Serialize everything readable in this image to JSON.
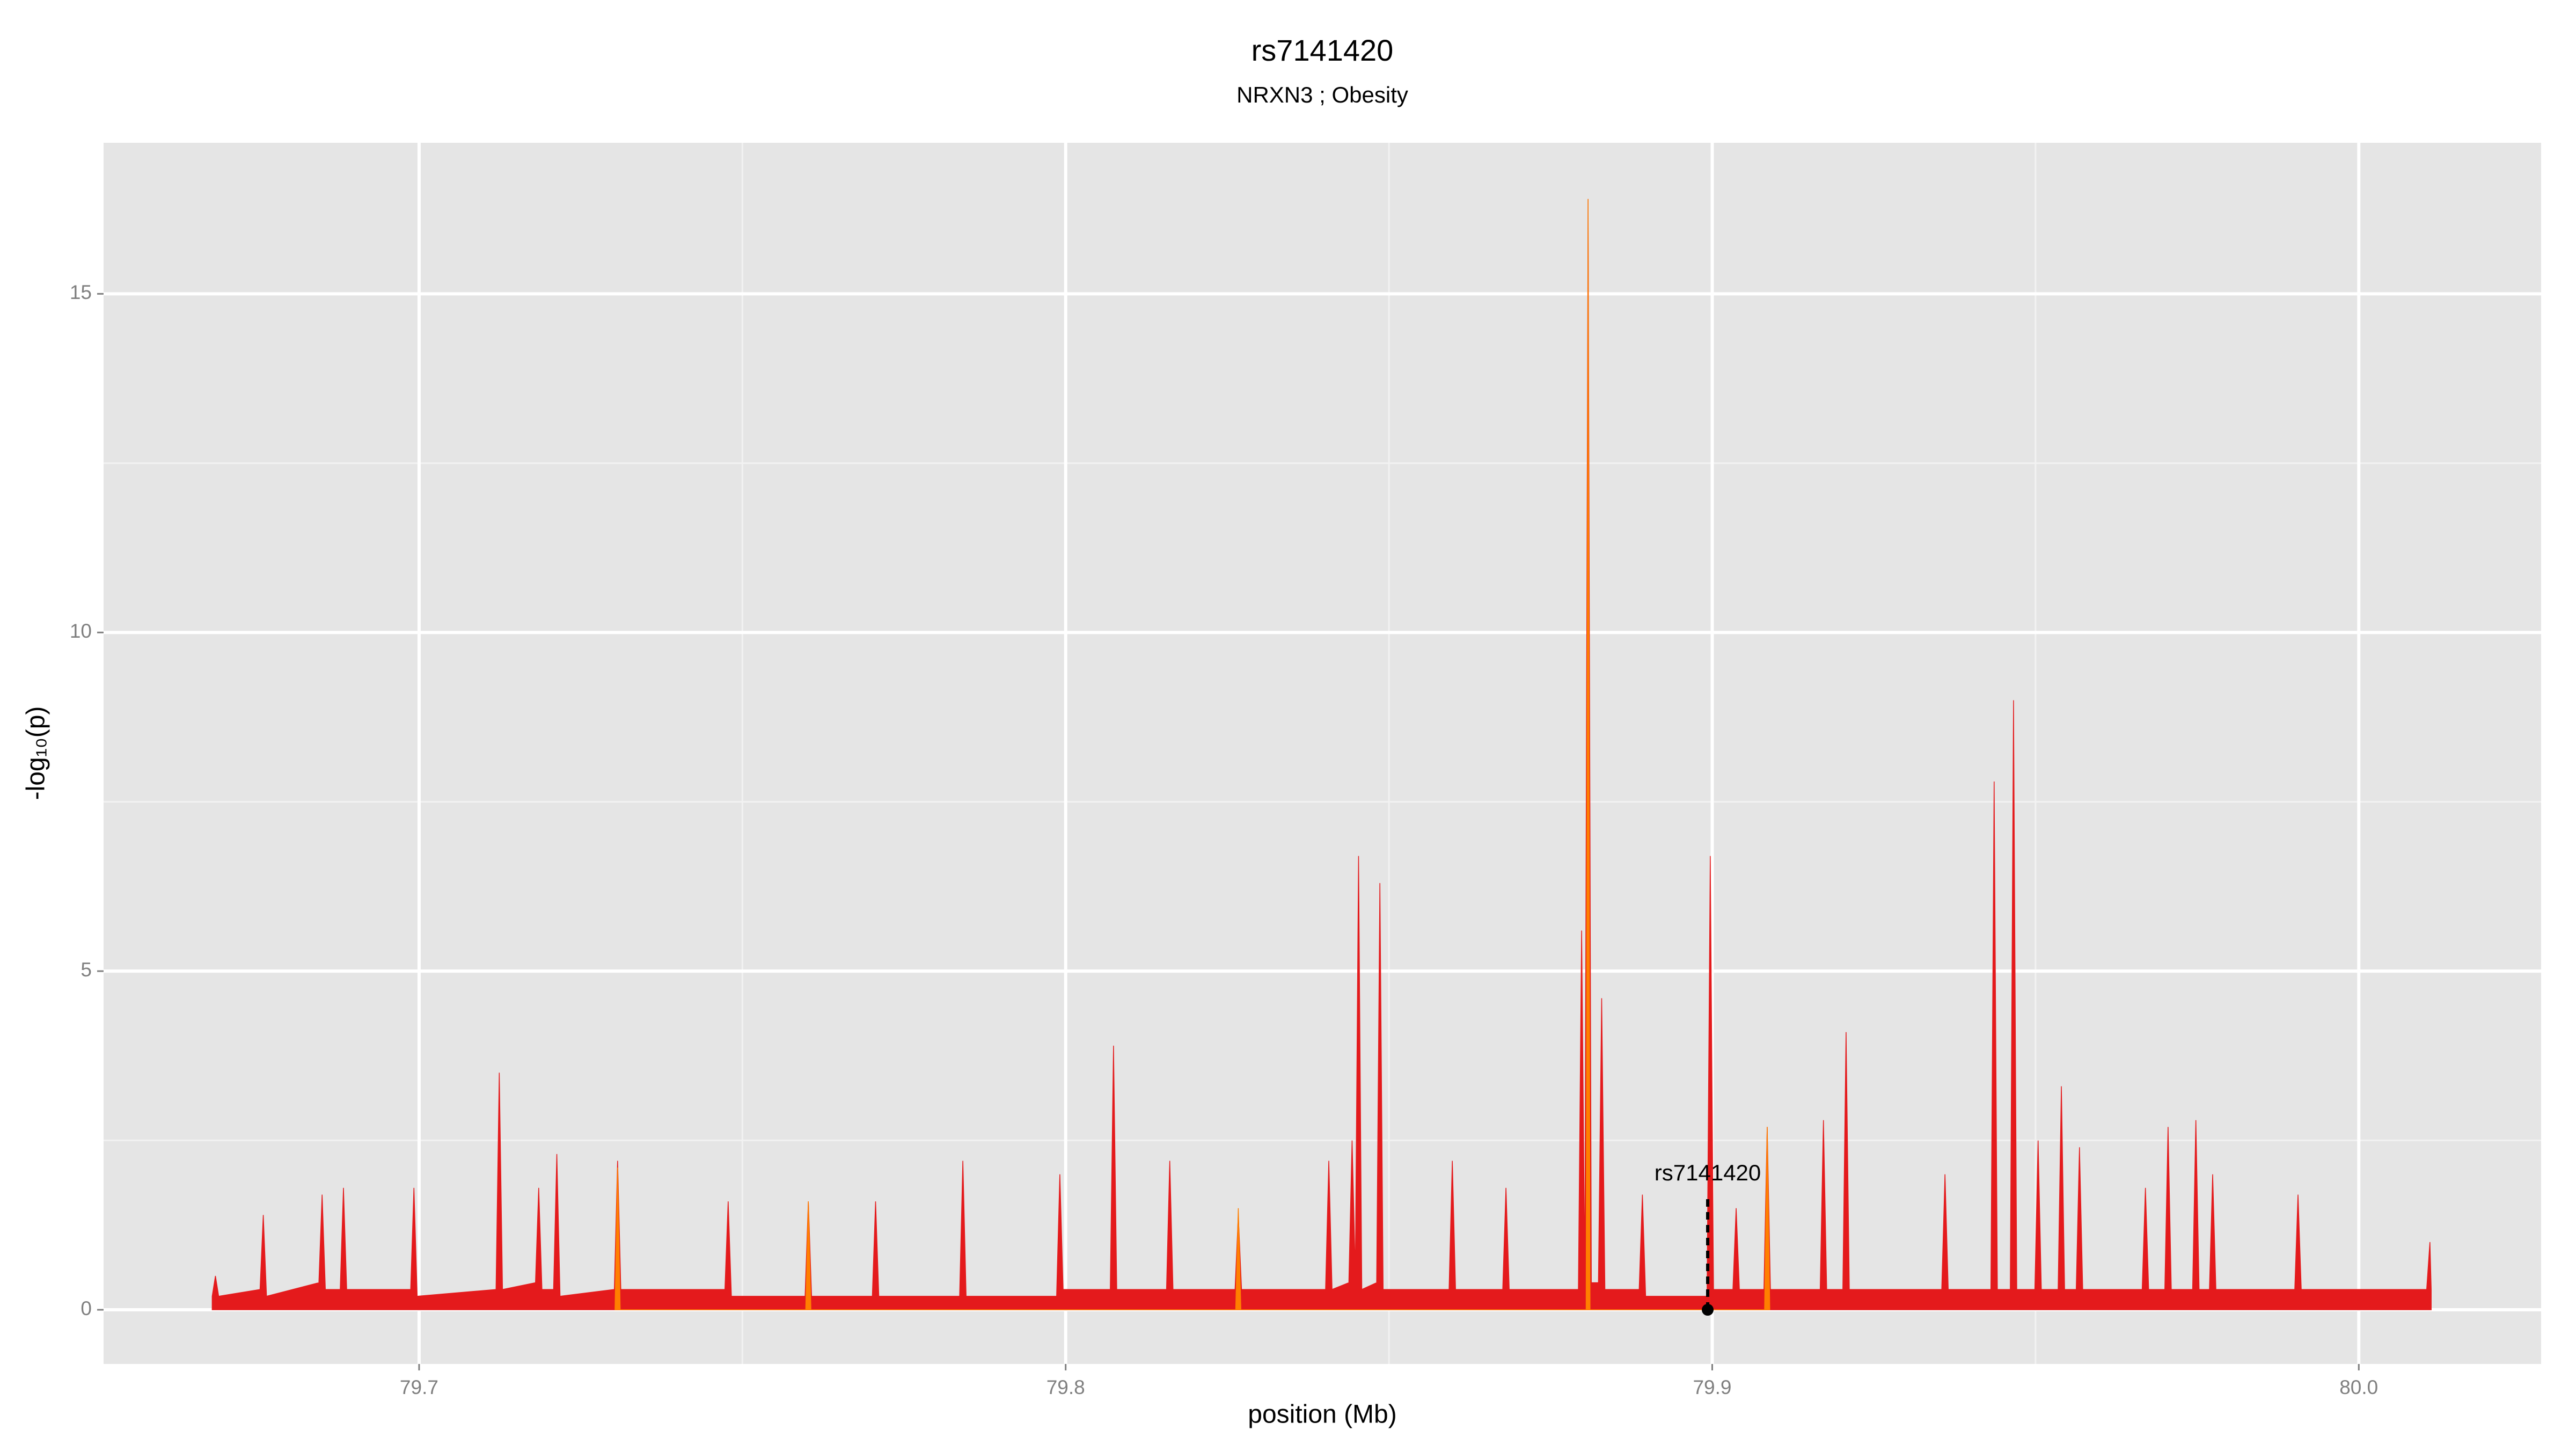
{
  "chart_data": {
    "type": "area",
    "title": "rs7141420",
    "subtitle": "NRXN3 ; Obesity",
    "xlabel": "position (Mb)",
    "ylabel": "-log₁₀(p)",
    "xlim": [
      79.6512,
      80.0282
    ],
    "ylim": [
      -0.8,
      17.23
    ],
    "xticks": [
      79.7,
      79.8,
      79.9,
      {
        "value": 80.0,
        "label": "80.0"
      }
    ],
    "yticks": [
      0,
      5,
      10,
      15
    ],
    "xminor": [
      79.75,
      79.85,
      79.95
    ],
    "yminor": [
      2.5,
      7.5,
      12.5
    ],
    "grid": true,
    "series": [
      {
        "color": "#e41a1c",
        "x": [
          79.668,
          79.6685,
          79.669,
          79.6754,
          79.6759,
          79.6764,
          79.6845,
          79.685,
          79.6855,
          79.6878,
          79.6883,
          79.6888,
          79.6987,
          79.6992,
          79.6997,
          79.7119,
          79.7124,
          79.7129,
          79.718,
          79.7185,
          79.719,
          79.7208,
          79.7213,
          79.7218,
          79.7302,
          79.7307,
          79.7312,
          79.7473,
          79.7478,
          79.7483,
          79.7597,
          79.7602,
          79.7607,
          79.7701,
          79.7706,
          79.7711,
          79.7836,
          79.7841,
          79.7846,
          79.7986,
          79.7991,
          79.7996,
          79.8069,
          79.8074,
          79.8079,
          79.8156,
          79.8161,
          79.8166,
          79.8262,
          79.8267,
          79.8272,
          79.8402,
          79.8407,
          79.8412,
          79.8438,
          79.8443,
          79.8448,
          79.8453,
          79.8458,
          79.8481,
          79.8486,
          79.8491,
          79.8593,
          79.8598,
          79.8603,
          79.8676,
          79.8681,
          79.8686,
          79.8793,
          79.8798,
          79.8803,
          79.8808,
          79.8813,
          79.8824,
          79.8829,
          79.8834,
          79.8887,
          79.8892,
          79.8897,
          79.8992,
          79.8997,
          79.9002,
          79.9032,
          79.9037,
          79.9042,
          79.908,
          79.9085,
          79.909,
          79.9167,
          79.9172,
          79.9177,
          79.9202,
          79.9207,
          79.9212,
          79.9355,
          79.936,
          79.9365,
          79.9431,
          79.9436,
          79.9441,
          79.9461,
          79.9466,
          79.9471,
          79.9499,
          79.9504,
          79.9509,
          79.9535,
          79.954,
          79.9545,
          79.9563,
          79.9568,
          79.9573,
          79.9665,
          79.967,
          79.9675,
          79.97,
          79.9705,
          79.971,
          79.9743,
          79.9748,
          79.9753,
          79.9769,
          79.9774,
          79.9779,
          79.9901,
          79.9906,
          79.9911,
          80.0105,
          80.011,
          80.0112
        ],
        "values": [
          0.2,
          0.5,
          0.2,
          0.3,
          1.4,
          0.2,
          0.4,
          1.7,
          0.3,
          0.3,
          1.8,
          0.3,
          0.3,
          1.8,
          0.2,
          0.3,
          3.5,
          0.3,
          0.4,
          1.8,
          0.3,
          0.3,
          2.3,
          0.2,
          0.3,
          2.2,
          0.3,
          0.3,
          1.6,
          0.2,
          0.2,
          1.6,
          0.2,
          0.2,
          1.6,
          0.2,
          0.2,
          2.2,
          0.2,
          0.2,
          2.0,
          0.3,
          0.3,
          3.9,
          0.3,
          0.3,
          2.2,
          0.3,
          0.3,
          1.4,
          0.3,
          0.3,
          2.2,
          0.3,
          0.4,
          2.5,
          0.5,
          6.7,
          0.3,
          0.4,
          6.3,
          0.3,
          0.3,
          2.2,
          0.3,
          0.3,
          1.8,
          0.3,
          0.3,
          5.6,
          0.4,
          16.4,
          0.4,
          0.4,
          4.6,
          0.3,
          0.3,
          1.7,
          0.2,
          0.2,
          6.7,
          0.3,
          0.3,
          1.5,
          0.3,
          0.3,
          2.7,
          0.3,
          0.3,
          2.8,
          0.3,
          0.3,
          4.1,
          0.3,
          0.3,
          2.0,
          0.3,
          0.3,
          7.8,
          0.3,
          0.3,
          9.0,
          0.3,
          0.3,
          2.5,
          0.3,
          0.3,
          3.3,
          0.3,
          0.3,
          2.4,
          0.3,
          0.3,
          1.8,
          0.3,
          0.3,
          2.7,
          0.3,
          0.3,
          2.8,
          0.3,
          0.3,
          2.0,
          0.3,
          0.3,
          1.7,
          0.3,
          0.3,
          1.0,
          0.3
        ]
      },
      {
        "color": "#ff7f00",
        "x": [
          79.7303,
          79.7307,
          79.7311,
          79.7598,
          79.7602,
          79.7606,
          79.8263,
          79.8267,
          79.8271,
          79.8805,
          79.8808,
          79.8811,
          79.9081,
          79.9085,
          79.9089
        ],
        "values": [
          0,
          2.1,
          0,
          0,
          1.6,
          0,
          0,
          1.5,
          0,
          0,
          16.4,
          0,
          0,
          2.7,
          0
        ]
      }
    ],
    "annotation": {
      "label": "rs7141420",
      "x": 79.8993,
      "y": 0,
      "label_y": 2.0
    }
  }
}
